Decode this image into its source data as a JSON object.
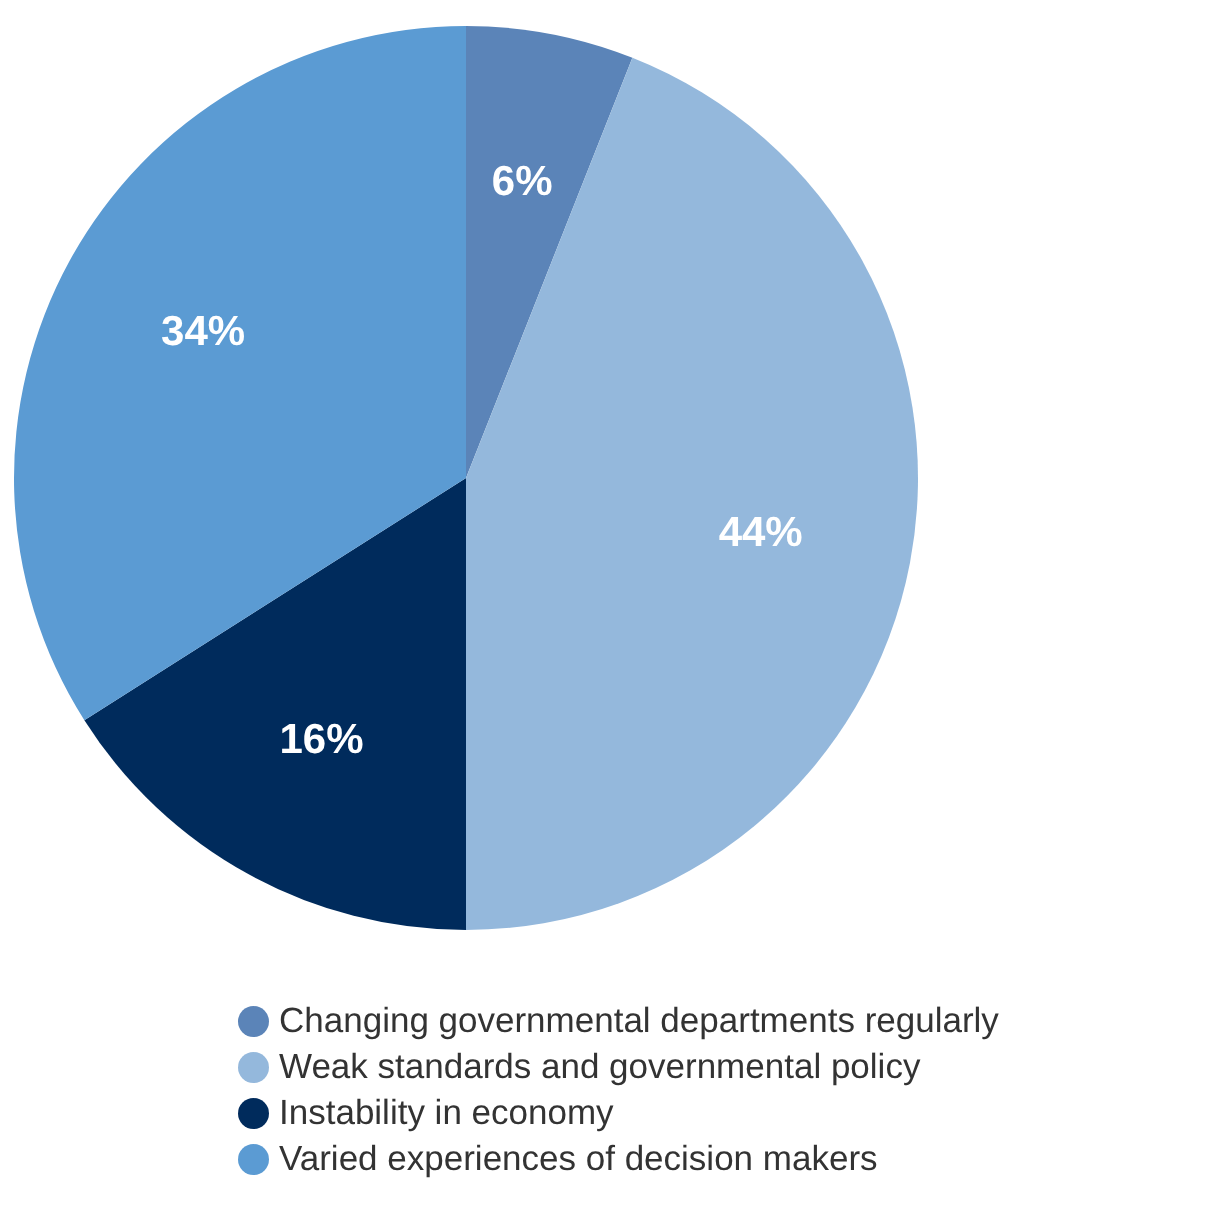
{
  "chart_data": {
    "type": "pie",
    "categories": [
      "Changing governmental departments regularly",
      "Weak standards and governmental policy",
      "Instability in economy",
      "Varied experiences of decision makers"
    ],
    "values": [
      6,
      44,
      16,
      34
    ],
    "colors": [
      "#5b84b8",
      "#94b8dc",
      "#002b5c",
      "#5b9bd3"
    ],
    "value_labels": [
      "6%",
      "44%",
      "16%",
      "34%"
    ],
    "legend": "bottom"
  }
}
